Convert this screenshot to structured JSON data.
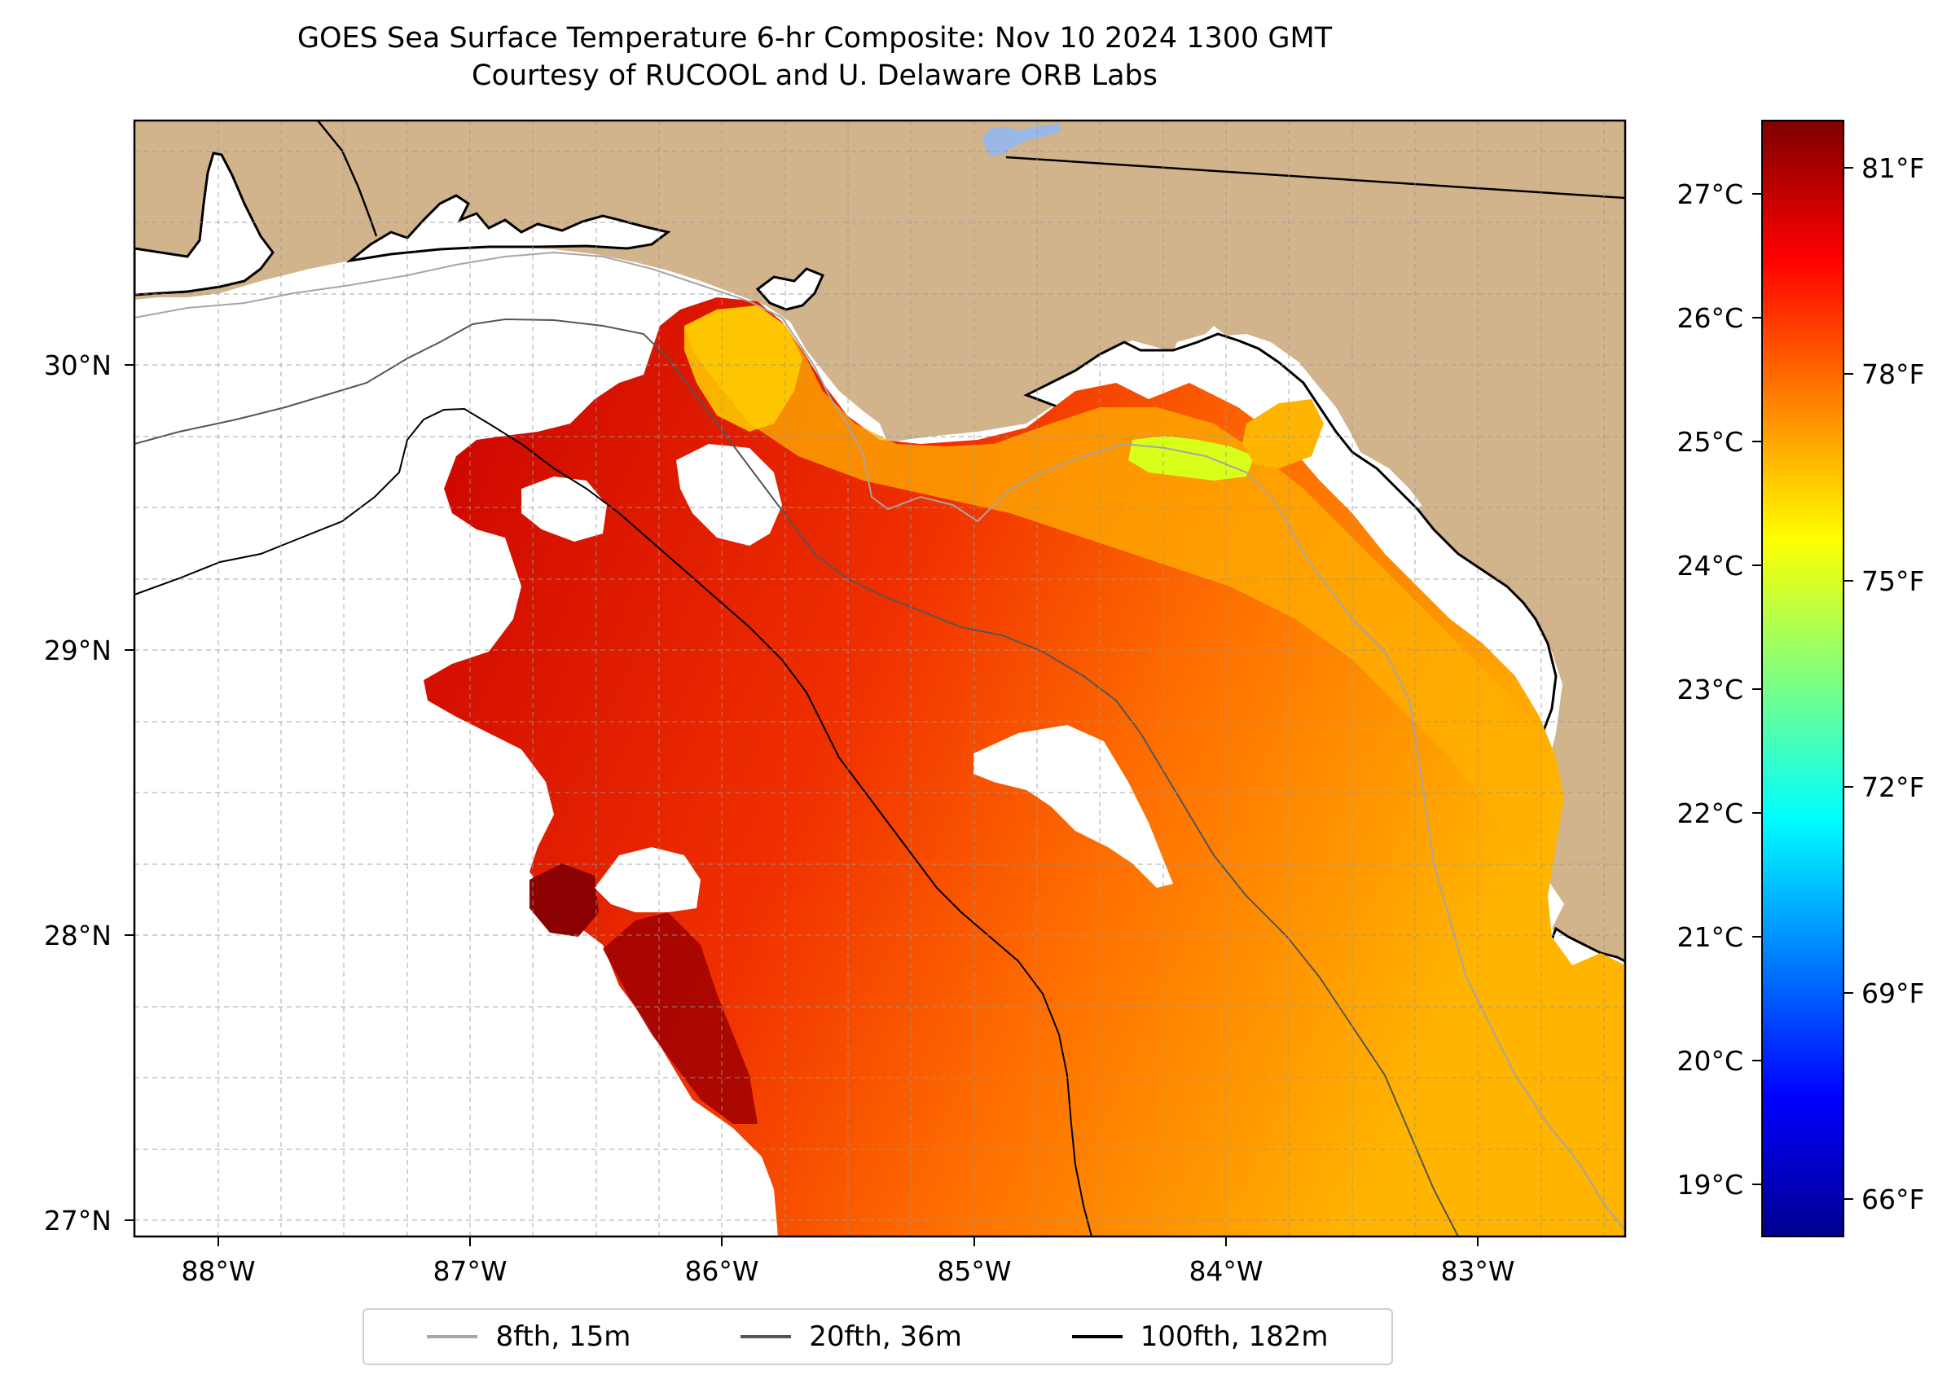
{
  "title": {
    "line1": "GOES Sea Surface Temperature 6-hr Composite: Nov 10 2024 1300 GMT",
    "line2": "Courtesy of RUCOOL and U. Delaware ORB Labs"
  },
  "map": {
    "lon_range": [
      -88.33,
      -82.4
    ],
    "lat_range": [
      26.93,
      30.85
    ],
    "lat_ticks": [
      {
        "value": 30,
        "label": "30°N"
      },
      {
        "value": 29,
        "label": "29°N"
      },
      {
        "value": 28,
        "label": "28°N"
      },
      {
        "value": 27,
        "label": "27°N"
      }
    ],
    "lon_ticks": [
      {
        "value": -88,
        "label": "88°W"
      },
      {
        "value": -87,
        "label": "87°W"
      },
      {
        "value": -86,
        "label": "86°W"
      },
      {
        "value": -85,
        "label": "85°W"
      },
      {
        "value": -84,
        "label": "84°W"
      },
      {
        "value": -83,
        "label": "83°W"
      }
    ],
    "colors": {
      "land": "#d2b48c",
      "water_cloud": "#ffffff",
      "warmest": "#8b0000",
      "warm": "#e01000",
      "mid": "#ff6a00",
      "cool": "#ffc800",
      "coolest": "#d8ff1a",
      "lake": "#9ab8e6"
    },
    "grid": true
  },
  "colorbar": {
    "celsius_ticks": [
      "27°C",
      "26°C",
      "25°C",
      "24°C",
      "23°C",
      "22°C",
      "21°C",
      "20°C",
      "19°C"
    ],
    "fahrenheit_ticks": [
      "81°F",
      "78°F",
      "75°F",
      "72°F",
      "69°F",
      "66°F"
    ],
    "colormap": "jet"
  },
  "legend": {
    "items": [
      {
        "label": "8fth, 15m",
        "color": "#a6a6a6"
      },
      {
        "label": "20fth, 36m",
        "color": "#555555"
      },
      {
        "label": "100fth, 182m",
        "color": "#000000"
      }
    ]
  }
}
